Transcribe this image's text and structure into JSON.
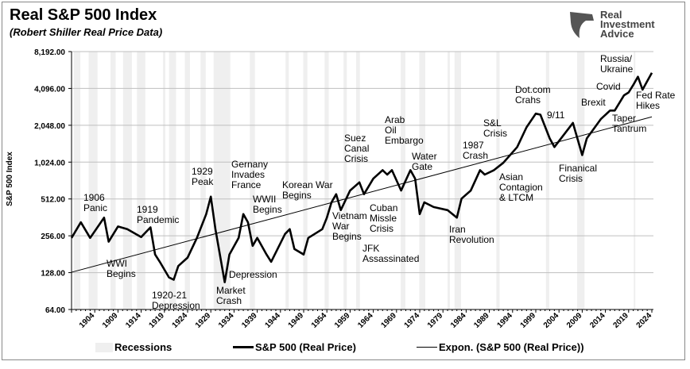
{
  "title": "Real S&P 500 Index",
  "subtitle": "(Robert Shiller Real Price Data)",
  "logo": {
    "line1": "Real",
    "line2": "Investment",
    "line3": "Advice"
  },
  "chart_data": {
    "type": "line",
    "title": "Real S&P 500 Index",
    "ylabel": "S&P 500 Index",
    "yscale": "log2",
    "ylim": [
      64,
      8192
    ],
    "xlim": [
      1899,
      2024
    ],
    "grid": "horizontal",
    "legend_position": "bottom",
    "y_ticks": [
      "8,192.00",
      "4,096.00",
      "2,048.00",
      "1,024.00",
      "512.00",
      "256.00",
      "128.00",
      "64.00"
    ],
    "y_tick_values": [
      8192,
      4096,
      2048,
      1024,
      512,
      256,
      128,
      64
    ],
    "x_ticks": [
      "1904",
      "1909",
      "1914",
      "1919",
      "1924",
      "1929",
      "1934",
      "1939",
      "1944",
      "1949",
      "1954",
      "1959",
      "1964",
      "1969",
      "1974",
      "1979",
      "1984",
      "1989",
      "1994",
      "1999",
      "2004",
      "2009",
      "2014",
      "2019",
      "2024"
    ],
    "colors": {
      "price": "#000000",
      "trend": "#000000",
      "recession": "#efefef",
      "grid": "#bfbfbf"
    },
    "legend": [
      "Recessions",
      "S&P 500 (Real Price)",
      "Expon. (S&P 500 (Real Price))"
    ],
    "recessions": [
      [
        1899.5,
        1900.9
      ],
      [
        1902.7,
        1904.6
      ],
      [
        1907.4,
        1908.5
      ],
      [
        1910.1,
        1912
      ],
      [
        1913.1,
        1914.9
      ],
      [
        1918.7,
        1919.2
      ],
      [
        1920,
        1921.5
      ],
      [
        1923.4,
        1924.5
      ],
      [
        1926.8,
        1927.9
      ],
      [
        1929.6,
        1933.2
      ],
      [
        1937.4,
        1938.5
      ],
      [
        1945.1,
        1945.8
      ],
      [
        1948.9,
        1949.8
      ],
      [
        1953.5,
        1954.4
      ],
      [
        1957.6,
        1958.3
      ],
      [
        1960.3,
        1961.1
      ],
      [
        1969.9,
        1970.9
      ],
      [
        1973.9,
        1975.2
      ],
      [
        1980,
        1980.5
      ],
      [
        1981.5,
        1982.9
      ],
      [
        1990.5,
        1991.2
      ],
      [
        2001.2,
        2001.9
      ],
      [
        2007.9,
        2009.5
      ],
      [
        2020.1,
        2020.4
      ]
    ],
    "series": [
      {
        "name": "S&P 500 (Real Price)",
        "points": [
          [
            1899,
            246
          ],
          [
            1901,
            330
          ],
          [
            1903,
            246
          ],
          [
            1906,
            360
          ],
          [
            1907,
            229
          ],
          [
            1909,
            305
          ],
          [
            1911,
            290
          ],
          [
            1914,
            250
          ],
          [
            1916,
            300
          ],
          [
            1917,
            180
          ],
          [
            1918,
            157
          ],
          [
            1920,
            117
          ],
          [
            1921,
            112
          ],
          [
            1922,
            145
          ],
          [
            1924,
            170
          ],
          [
            1926,
            246
          ],
          [
            1928,
            385
          ],
          [
            1929,
            535
          ],
          [
            1930,
            290
          ],
          [
            1932,
            107
          ],
          [
            1933,
            180
          ],
          [
            1935,
            246
          ],
          [
            1936,
            385
          ],
          [
            1937,
            330
          ],
          [
            1938,
            212
          ],
          [
            1939,
            246
          ],
          [
            1941,
            180
          ],
          [
            1942,
            157
          ],
          [
            1945,
            265
          ],
          [
            1946,
            290
          ],
          [
            1947,
            200
          ],
          [
            1949,
            180
          ],
          [
            1950,
            246
          ],
          [
            1953,
            290
          ],
          [
            1954,
            360
          ],
          [
            1955,
            480
          ],
          [
            1956,
            560
          ],
          [
            1957,
            415
          ],
          [
            1959,
            600
          ],
          [
            1961,
            700
          ],
          [
            1962,
            560
          ],
          [
            1964,
            750
          ],
          [
            1966,
            880
          ],
          [
            1967,
            810
          ],
          [
            1968,
            880
          ],
          [
            1970,
            600
          ],
          [
            1972,
            880
          ],
          [
            1973,
            750
          ],
          [
            1974,
            385
          ],
          [
            1975,
            480
          ],
          [
            1977,
            440
          ],
          [
            1980,
            415
          ],
          [
            1982,
            360
          ],
          [
            1983,
            515
          ],
          [
            1985,
            600
          ],
          [
            1987,
            880
          ],
          [
            1988,
            810
          ],
          [
            1990,
            880
          ],
          [
            1992,
            1010
          ],
          [
            1995,
            1360
          ],
          [
            1997,
            1970
          ],
          [
            1999,
            2550
          ],
          [
            2000,
            2500
          ],
          [
            2002,
            1600
          ],
          [
            2003,
            1360
          ],
          [
            2007,
            2140
          ],
          [
            2009,
            1170
          ],
          [
            2010,
            1600
          ],
          [
            2013,
            2300
          ],
          [
            2015,
            2700
          ],
          [
            2016,
            2700
          ],
          [
            2018,
            3600
          ],
          [
            2019,
            3800
          ],
          [
            2020,
            4370
          ],
          [
            2021,
            5100
          ],
          [
            2022,
            4000
          ],
          [
            2023,
            4700
          ],
          [
            2024,
            5500
          ]
        ]
      },
      {
        "name": "Expon. (S&P 500 (Real Price))",
        "points": [
          [
            1899,
            129
          ],
          [
            2024,
            2400
          ]
        ]
      }
    ],
    "annotations": [
      "1906\nPanic",
      "1919\nPandemic",
      "WWI\nBegins",
      "1920-21\nDepression",
      "1929\nPeak",
      "Market\nCrash",
      "Depression",
      "Gernany\nInvades\nFrance",
      "WWII\nBegins",
      "Korean War\nBegins",
      "Vietnam\nWar\nBegins",
      "Suez\nCanal\nCrisis",
      "Cuban\nMissle\nCrisis",
      "JFK\nAssassinated",
      "Arab\nOil\nEmbargo",
      "Water\nGate",
      "1987\nCrash",
      "S&L\nCrisis",
      "Iran\nRevolution",
      "Asian\nContagion\n& LTCM",
      "Dot.com\nCrahs",
      "9/11",
      "Finanical\nCrisis",
      "Brexit",
      "Covid",
      "Russia/\nUkraine",
      "Fed Rate\nHikes",
      "Taper\nTantrum"
    ]
  }
}
